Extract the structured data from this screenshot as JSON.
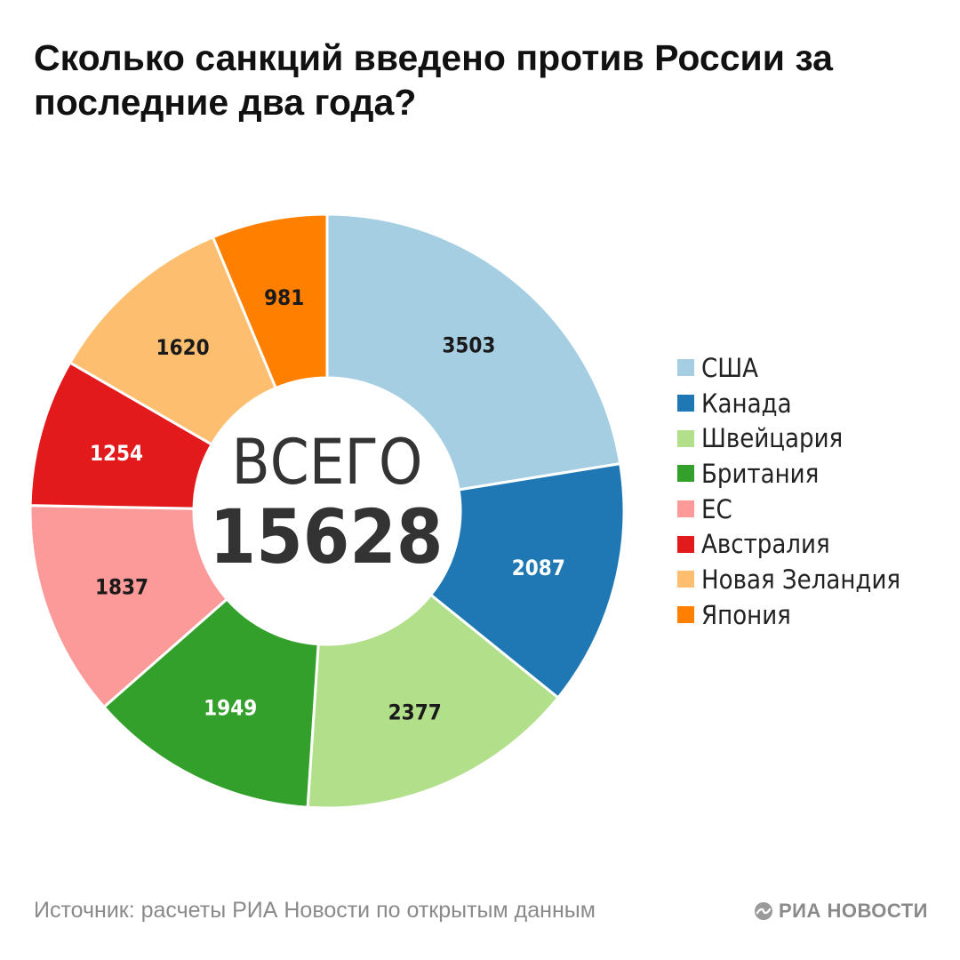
{
  "title": "Сколько санкций введено против России за последние два года?",
  "center": {
    "label": "ВСЕГО",
    "total": "15628"
  },
  "chart_data": {
    "type": "pie",
    "donut": true,
    "categories": [
      "США",
      "Канада",
      "Швейцария",
      "Британия",
      "ЕС",
      "Австралия",
      "Новая Зеландия",
      "Япония"
    ],
    "values": [
      3503,
      2087,
      2377,
      1949,
      1837,
      1254,
      1620,
      981
    ],
    "colors": [
      "#a6cee3",
      "#1f78b4",
      "#b2df8a",
      "#33a02c",
      "#fb9a99",
      "#e31a1c",
      "#fdbf6f",
      "#ff7f00"
    ],
    "label_colors": [
      "#1a1a1a",
      "#ffffff",
      "#1a1a1a",
      "#ffffff",
      "#1a1a1a",
      "#ffffff",
      "#1a1a1a",
      "#1a1a1a"
    ],
    "legend_placement": "right"
  },
  "footer": {
    "source": "Источник: расчеты РИА Новости по открытым данным",
    "brand": "РИА НОВОСТИ",
    "brand_icon": "ria-logo-icon"
  }
}
